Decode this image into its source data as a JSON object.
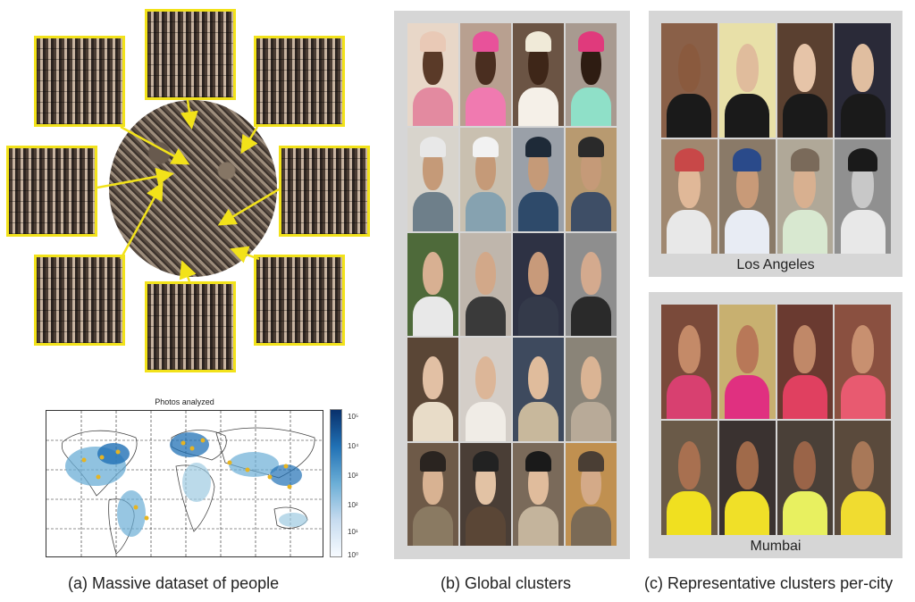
{
  "panel_a": {
    "map_title": "Photos analyzed",
    "colorbar_ticks": [
      "10⁵",
      "10⁴",
      "10³",
      "10²",
      "10¹",
      "10⁰"
    ],
    "caption": "(a) Massive dataset of people"
  },
  "panel_b": {
    "caption": "(b) Global clusters"
  },
  "panel_c": {
    "cities": [
      "Los Angeles",
      "Mumbai"
    ],
    "caption": "(c) Representative clusters per-city"
  }
}
